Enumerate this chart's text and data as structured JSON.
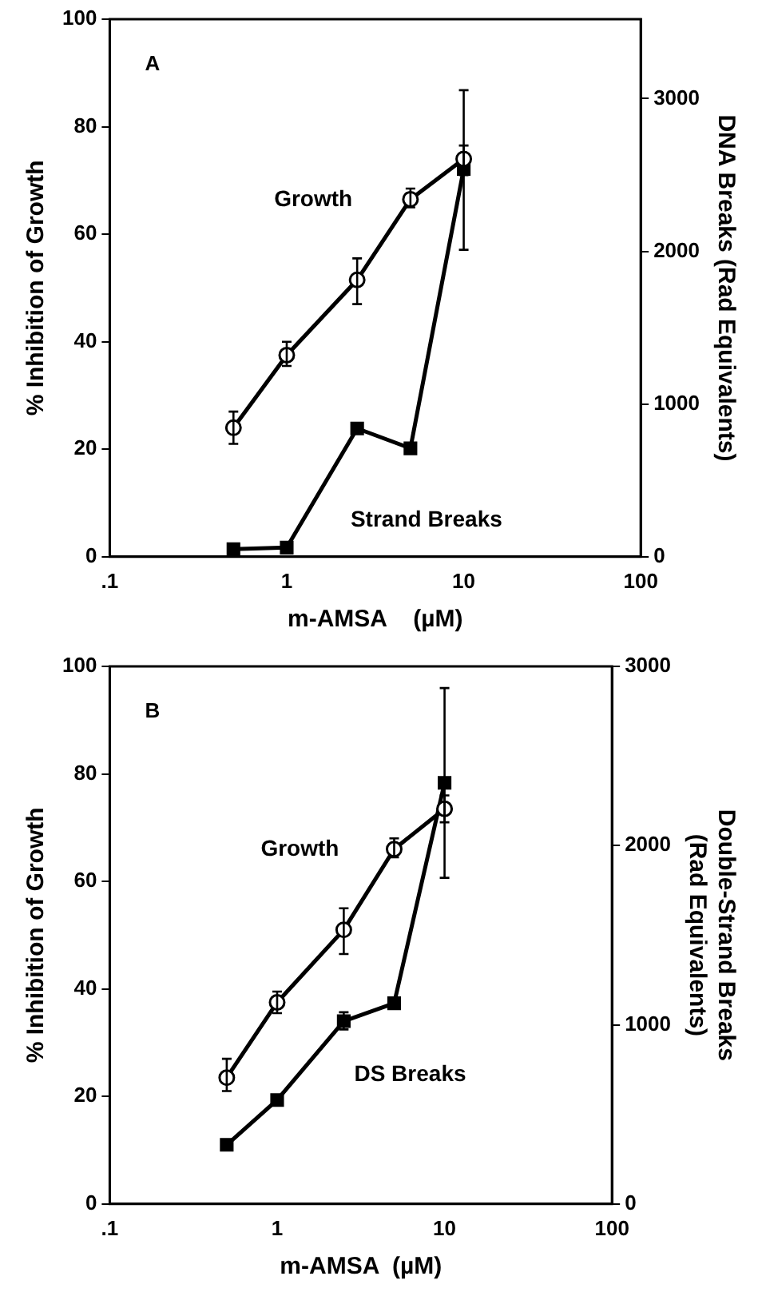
{
  "chart_data": [
    {
      "type": "line",
      "annotations": [
        "A"
      ],
      "xlabel": "m-AMSA    (µM)",
      "ylabel": "% Inhibition of Growth",
      "y2label": "DNA Breaks (Rad Equivalents)",
      "log": "x",
      "grid": false,
      "legend": false,
      "xlim": [
        0.1,
        100
      ],
      "xticks": [
        {
          "value": 0.1,
          "label": ".1"
        },
        1,
        10,
        100
      ],
      "ylim": [
        0,
        100
      ],
      "yticks": [
        0,
        20,
        40,
        60,
        80,
        100
      ],
      "y2lim": [
        0,
        3520
      ],
      "y2ticks": [
        0,
        1000,
        2000,
        3000
      ],
      "series": [
        {
          "name": "Growth",
          "color": "#000000",
          "marker": "circle",
          "x": [
            0.5,
            1,
            2.5,
            5,
            10
          ],
          "values": [
            24,
            37.5,
            51.5,
            66.5,
            74
          ],
          "errors": [
            [
              21,
              27
            ],
            [
              35.5,
              40
            ],
            [
              47,
              55.5
            ],
            [
              65,
              68.5
            ],
            [
              71,
              76.5
            ]
          ]
        },
        {
          "name": "Strand Breaks",
          "color": "#000000",
          "marker": "square",
          "axis": "y2",
          "x": [
            0.5,
            1,
            2.5,
            5,
            10
          ],
          "values": [
            50,
            60,
            840,
            710,
            2540
          ],
          "errors": [
            null,
            null,
            null,
            null,
            [
              2010,
              3055
            ]
          ]
        }
      ]
    },
    {
      "type": "line",
      "annotations": [
        "B"
      ],
      "xlabel": "m-AMSA  (µM)",
      "ylabel": "% Inhibition of Growth",
      "y2label": "Double-Strand Breaks\n(Rad Equivalents)",
      "log": "x",
      "grid": false,
      "legend": false,
      "xlim": [
        0.1,
        100
      ],
      "xticks": [
        {
          "value": 0.1,
          "label": ".1"
        },
        1,
        10,
        100
      ],
      "ylim": [
        0,
        100
      ],
      "yticks": [
        0,
        20,
        40,
        60,
        80,
        100
      ],
      "y2lim": [
        0,
        3000
      ],
      "y2ticks": [
        0,
        1000,
        2000,
        3000
      ],
      "series": [
        {
          "name": "Growth",
          "color": "#000000",
          "marker": "circle",
          "x": [
            0.5,
            1,
            2.5,
            5,
            10
          ],
          "values": [
            23.5,
            37.5,
            51,
            66,
            73.5
          ],
          "errors": [
            [
              21,
              27
            ],
            [
              35.5,
              39.5
            ],
            [
              46.5,
              55
            ],
            [
              64.5,
              68
            ],
            [
              71,
              76
            ]
          ]
        },
        {
          "name": "DS Breaks",
          "color": "#000000",
          "marker": "square",
          "axis": "y2",
          "x": [
            0.5,
            1,
            2.5,
            5,
            10
          ],
          "values": [
            330,
            580,
            1020,
            1120,
            2350
          ],
          "errors": [
            null,
            null,
            [
              974,
              1070
            ],
            null,
            [
              1820,
              2879
            ]
          ]
        }
      ]
    }
  ]
}
